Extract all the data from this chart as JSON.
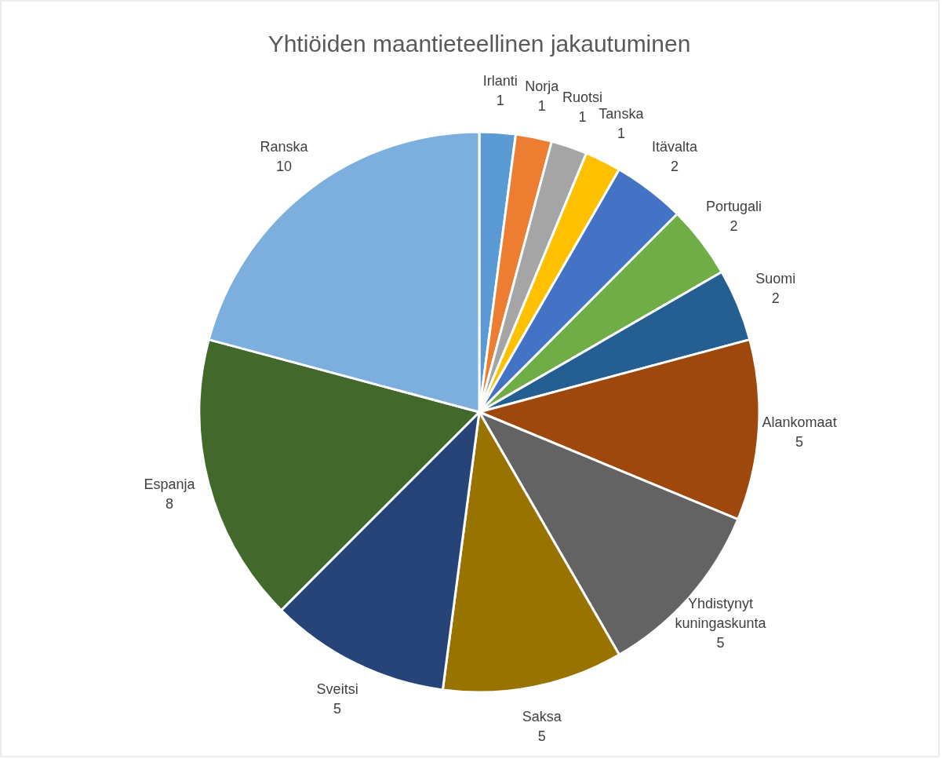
{
  "chart_data": {
    "type": "pie",
    "title": "Yhtiöiden maantieteellinen jakautuminen",
    "categories": [
      "Irlanti",
      "Norja",
      "Ruotsi",
      "Tanska",
      "Itävalta",
      "Portugali",
      "Suomi",
      "Alankomaat",
      "Yhdistynyt kuningaskunta",
      "Saksa",
      "Sveitsi",
      "Espanja",
      "Ranska"
    ],
    "values": [
      1,
      1,
      1,
      1,
      2,
      2,
      2,
      5,
      5,
      5,
      5,
      8,
      10
    ],
    "colors": [
      "#5b9bd5",
      "#ed7d31",
      "#a5a5a5",
      "#ffc000",
      "#4472c4",
      "#70ad47",
      "#255e91",
      "#9e480e",
      "#636363",
      "#997300",
      "#264478",
      "#43682b",
      "#7cafdd"
    ],
    "data_labels": true
  }
}
